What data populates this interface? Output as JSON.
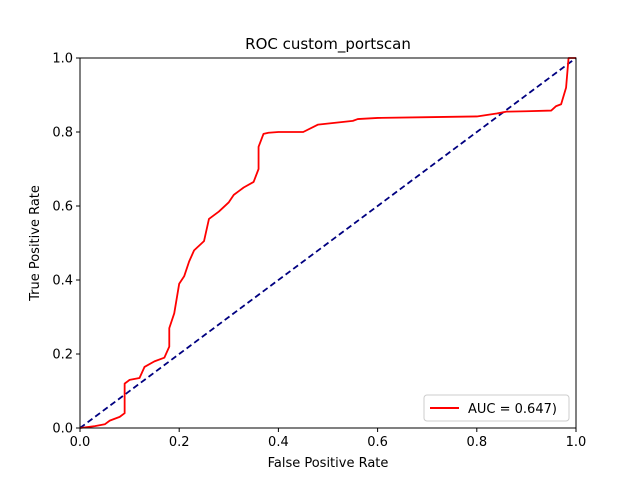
{
  "chart_data": {
    "type": "line",
    "title": "ROC custom_portscan",
    "xlabel": "False Positive Rate",
    "ylabel": "True Positive Rate",
    "xlim": [
      0.0,
      1.0
    ],
    "ylim": [
      0.0,
      1.0
    ],
    "grid": false,
    "legend_position": "lower-right",
    "x_ticks": [
      "0.0",
      "0.2",
      "0.4",
      "0.6",
      "0.8",
      "1.0"
    ],
    "y_ticks": [
      "0.0",
      "0.2",
      "0.4",
      "0.6",
      "0.8",
      "1.0"
    ],
    "series": [
      {
        "name": "AUC = 0.647)",
        "color": "#ff0000",
        "style": "solid",
        "x": [
          0.0,
          0.03,
          0.05,
          0.06,
          0.07,
          0.08,
          0.09,
          0.09,
          0.1,
          0.12,
          0.13,
          0.15,
          0.17,
          0.18,
          0.18,
          0.19,
          0.2,
          0.21,
          0.22,
          0.23,
          0.25,
          0.26,
          0.28,
          0.3,
          0.31,
          0.32,
          0.33,
          0.35,
          0.36,
          0.36,
          0.37,
          0.38,
          0.4,
          0.45,
          0.48,
          0.55,
          0.56,
          0.6,
          0.7,
          0.8,
          0.84,
          0.86,
          0.9,
          0.95,
          0.96,
          0.97,
          0.98,
          0.985,
          1.0
        ],
        "y": [
          0.0,
          0.005,
          0.01,
          0.02,
          0.025,
          0.03,
          0.04,
          0.12,
          0.13,
          0.135,
          0.165,
          0.18,
          0.19,
          0.22,
          0.27,
          0.31,
          0.39,
          0.41,
          0.45,
          0.48,
          0.505,
          0.565,
          0.585,
          0.61,
          0.63,
          0.64,
          0.65,
          0.665,
          0.7,
          0.76,
          0.795,
          0.798,
          0.8,
          0.8,
          0.82,
          0.83,
          0.835,
          0.838,
          0.84,
          0.842,
          0.85,
          0.855,
          0.856,
          0.858,
          0.87,
          0.875,
          0.92,
          1.0,
          1.0
        ]
      },
      {
        "name": "",
        "color": "#000080",
        "style": "dashed",
        "x": [
          0.0,
          1.0
        ],
        "y": [
          0.0,
          1.0
        ]
      }
    ]
  }
}
